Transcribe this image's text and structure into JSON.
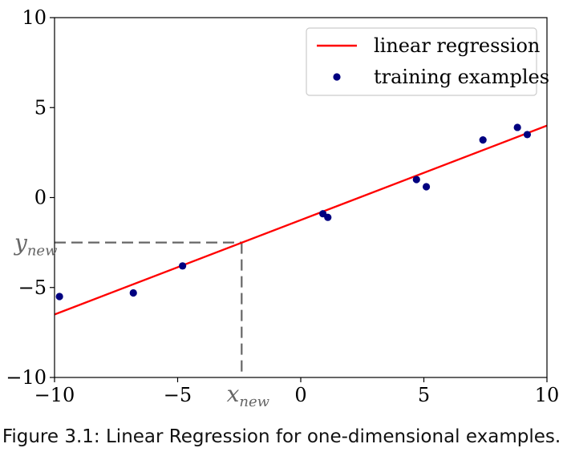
{
  "chart_data": {
    "type": "scatter",
    "xlim": [
      -10,
      10
    ],
    "ylim": [
      -10,
      10
    ],
    "xticks": [
      -10,
      -5,
      0,
      5,
      10
    ],
    "yticks": [
      -10,
      -5,
      0,
      5,
      10
    ],
    "xtick_labels": [
      "−10",
      "−5",
      "0",
      "5",
      "10"
    ],
    "ytick_labels": [
      "−10",
      "−5",
      "0",
      "5",
      "10"
    ],
    "grid": false,
    "legend_position": "top-right",
    "series": [
      {
        "name": "linear regression",
        "type": "line",
        "color": "#ff0000",
        "x": [
          -10,
          10
        ],
        "y": [
          -6.5,
          4.0
        ]
      },
      {
        "name": "training examples",
        "type": "scatter",
        "color": "#000080",
        "x": [
          -9.8,
          -6.8,
          -4.8,
          0.9,
          1.1,
          4.7,
          5.1,
          7.4,
          8.8,
          9.2
        ],
        "y": [
          -5.5,
          -5.3,
          -3.8,
          -0.9,
          -1.1,
          1.0,
          0.6,
          3.2,
          3.9,
          3.5
        ]
      }
    ],
    "annotations": {
      "x_new": {
        "value": -2.4,
        "label_main": "x",
        "label_sub": "new"
      },
      "y_new": {
        "value": -2.5,
        "label_main": "y",
        "label_sub": "new"
      },
      "color": "#666666"
    }
  },
  "caption": "Figure 3.1: Linear Regression for one-dimensional examples."
}
